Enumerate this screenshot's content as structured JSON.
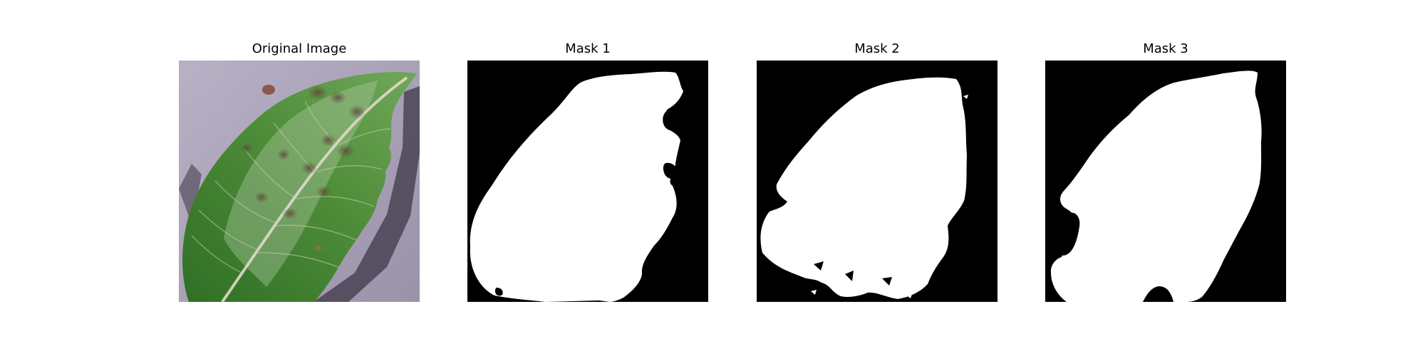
{
  "figure": {
    "panels": [
      {
        "title": "Original Image"
      },
      {
        "title": "Mask 1"
      },
      {
        "title": "Mask 2"
      },
      {
        "title": "Mask 3"
      }
    ]
  },
  "colors": {
    "background": "#ffffff",
    "mask_background": "#000000",
    "mask_foreground": "#ffffff",
    "leaf_surface": "#a79fb6",
    "leaf_green": "#4f8b35",
    "leaf_vein": "#d8d0c0"
  }
}
